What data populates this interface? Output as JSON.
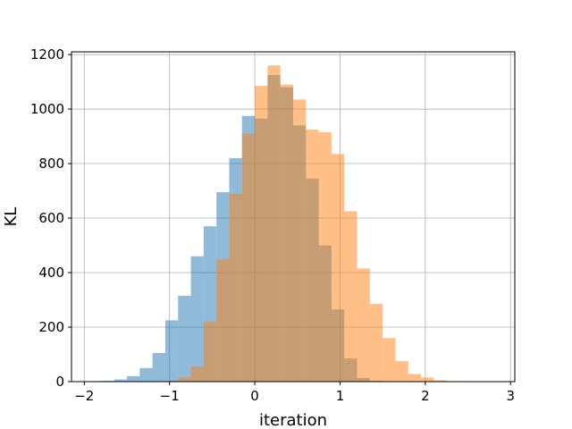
{
  "chart_data": {
    "type": "bar",
    "title": "",
    "xlabel": "iteration",
    "ylabel": "KL",
    "xlim": [
      -2.15,
      3.05
    ],
    "ylim": [
      0,
      1210
    ],
    "xticks": [
      -2,
      -1,
      0,
      1,
      2,
      3
    ],
    "yticks": [
      0,
      200,
      400,
      600,
      800,
      1000,
      1200
    ],
    "grid": true,
    "series": [
      {
        "color": "#1f77b4",
        "opacity": 0.5,
        "bin_edges": [
          -1.95,
          -1.8,
          -1.65,
          -1.5,
          -1.35,
          -1.2,
          -1.05,
          -0.9,
          -0.75,
          -0.6,
          -0.45,
          -0.3,
          -0.15,
          0.0,
          0.15,
          0.3,
          0.45,
          0.6,
          0.75,
          0.9,
          1.05,
          1.2,
          1.35,
          1.5
        ],
        "counts": [
          2,
          3,
          8,
          20,
          50,
          105,
          225,
          315,
          460,
          570,
          695,
          820,
          975,
          965,
          1125,
          1080,
          940,
          745,
          500,
          265,
          85,
          13,
          3
        ]
      },
      {
        "color": "#ff7f0e",
        "opacity": 0.5,
        "bin_edges": [
          -1.05,
          -0.9,
          -0.75,
          -0.6,
          -0.45,
          -0.3,
          -0.15,
          0.0,
          0.15,
          0.3,
          0.45,
          0.6,
          0.75,
          0.9,
          1.05,
          1.2,
          1.35,
          1.5,
          1.65,
          1.8,
          1.95,
          2.1,
          2.25,
          2.4,
          2.55,
          2.7,
          2.85
        ],
        "counts": [
          3,
          15,
          55,
          220,
          450,
          690,
          910,
          1085,
          1160,
          1090,
          1035,
          925,
          915,
          835,
          625,
          415,
          285,
          160,
          75,
          28,
          15,
          5,
          2,
          1,
          1,
          0
        ]
      }
    ]
  }
}
